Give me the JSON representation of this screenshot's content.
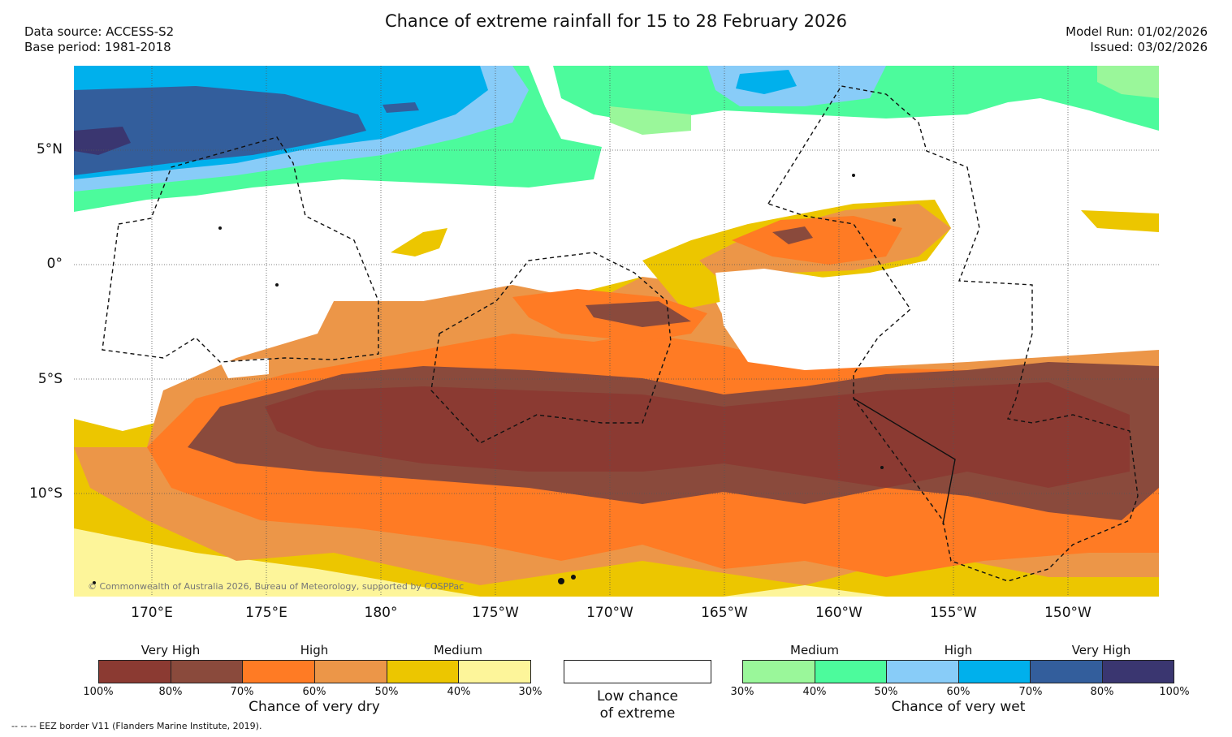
{
  "title": "Chance of extreme rainfall for 15 to 28 February 2026",
  "data_source": "Data source: ACCESS-S2",
  "base_period": "Base period: 1981-2018",
  "model_run": "Model Run: 01/02/2026",
  "issued": "Issued: 03/02/2026",
  "lat_labels": [
    "5°N",
    "0°",
    "5°S",
    "10°S"
  ],
  "lon_labels": [
    "170°E",
    "175°E",
    "180°",
    "175°W",
    "170°W",
    "165°W",
    "160°W",
    "155°W",
    "150°W"
  ],
  "copyright": "© Commonwealth of Australia 2026, Bureau of Meteorology, supported by COSPPac",
  "colors": {
    "dry_very_high_1": "#8b3a32",
    "dry_very_high_2": "#8a4a3c",
    "dry_high_1": "#ff7b24",
    "dry_high_2": "#ec9648",
    "dry_medium_1": "#ecc600",
    "dry_medium_2": "#fdf59a",
    "wet_medium_1": "#9af79a",
    "wet_medium_2": "#4cfb9c",
    "wet_high_1": "#88ccf8",
    "wet_high_2": "#00b0ec",
    "wet_very_high_1": "#335e9c",
    "wet_very_high_2": "#3a3670"
  },
  "legend_dry": {
    "headings": [
      "Very High",
      "High",
      "Medium"
    ],
    "ticks": [
      "100%",
      "80%",
      "70%",
      "60%",
      "50%",
      "40%",
      "30%"
    ],
    "caption": "Chance of very dry"
  },
  "legend_low": {
    "caption_line1": "Low chance",
    "caption_line2": "of extreme"
  },
  "legend_wet": {
    "headings": [
      "Medium",
      "High",
      "Very High"
    ],
    "ticks": [
      "30%",
      "40%",
      "50%",
      "60%",
      "70%",
      "80%",
      "100%"
    ],
    "caption": "Chance of very wet"
  },
  "footnote": "-- -- -- EEZ border V11 (Flanders Marine Institute, 2019)."
}
